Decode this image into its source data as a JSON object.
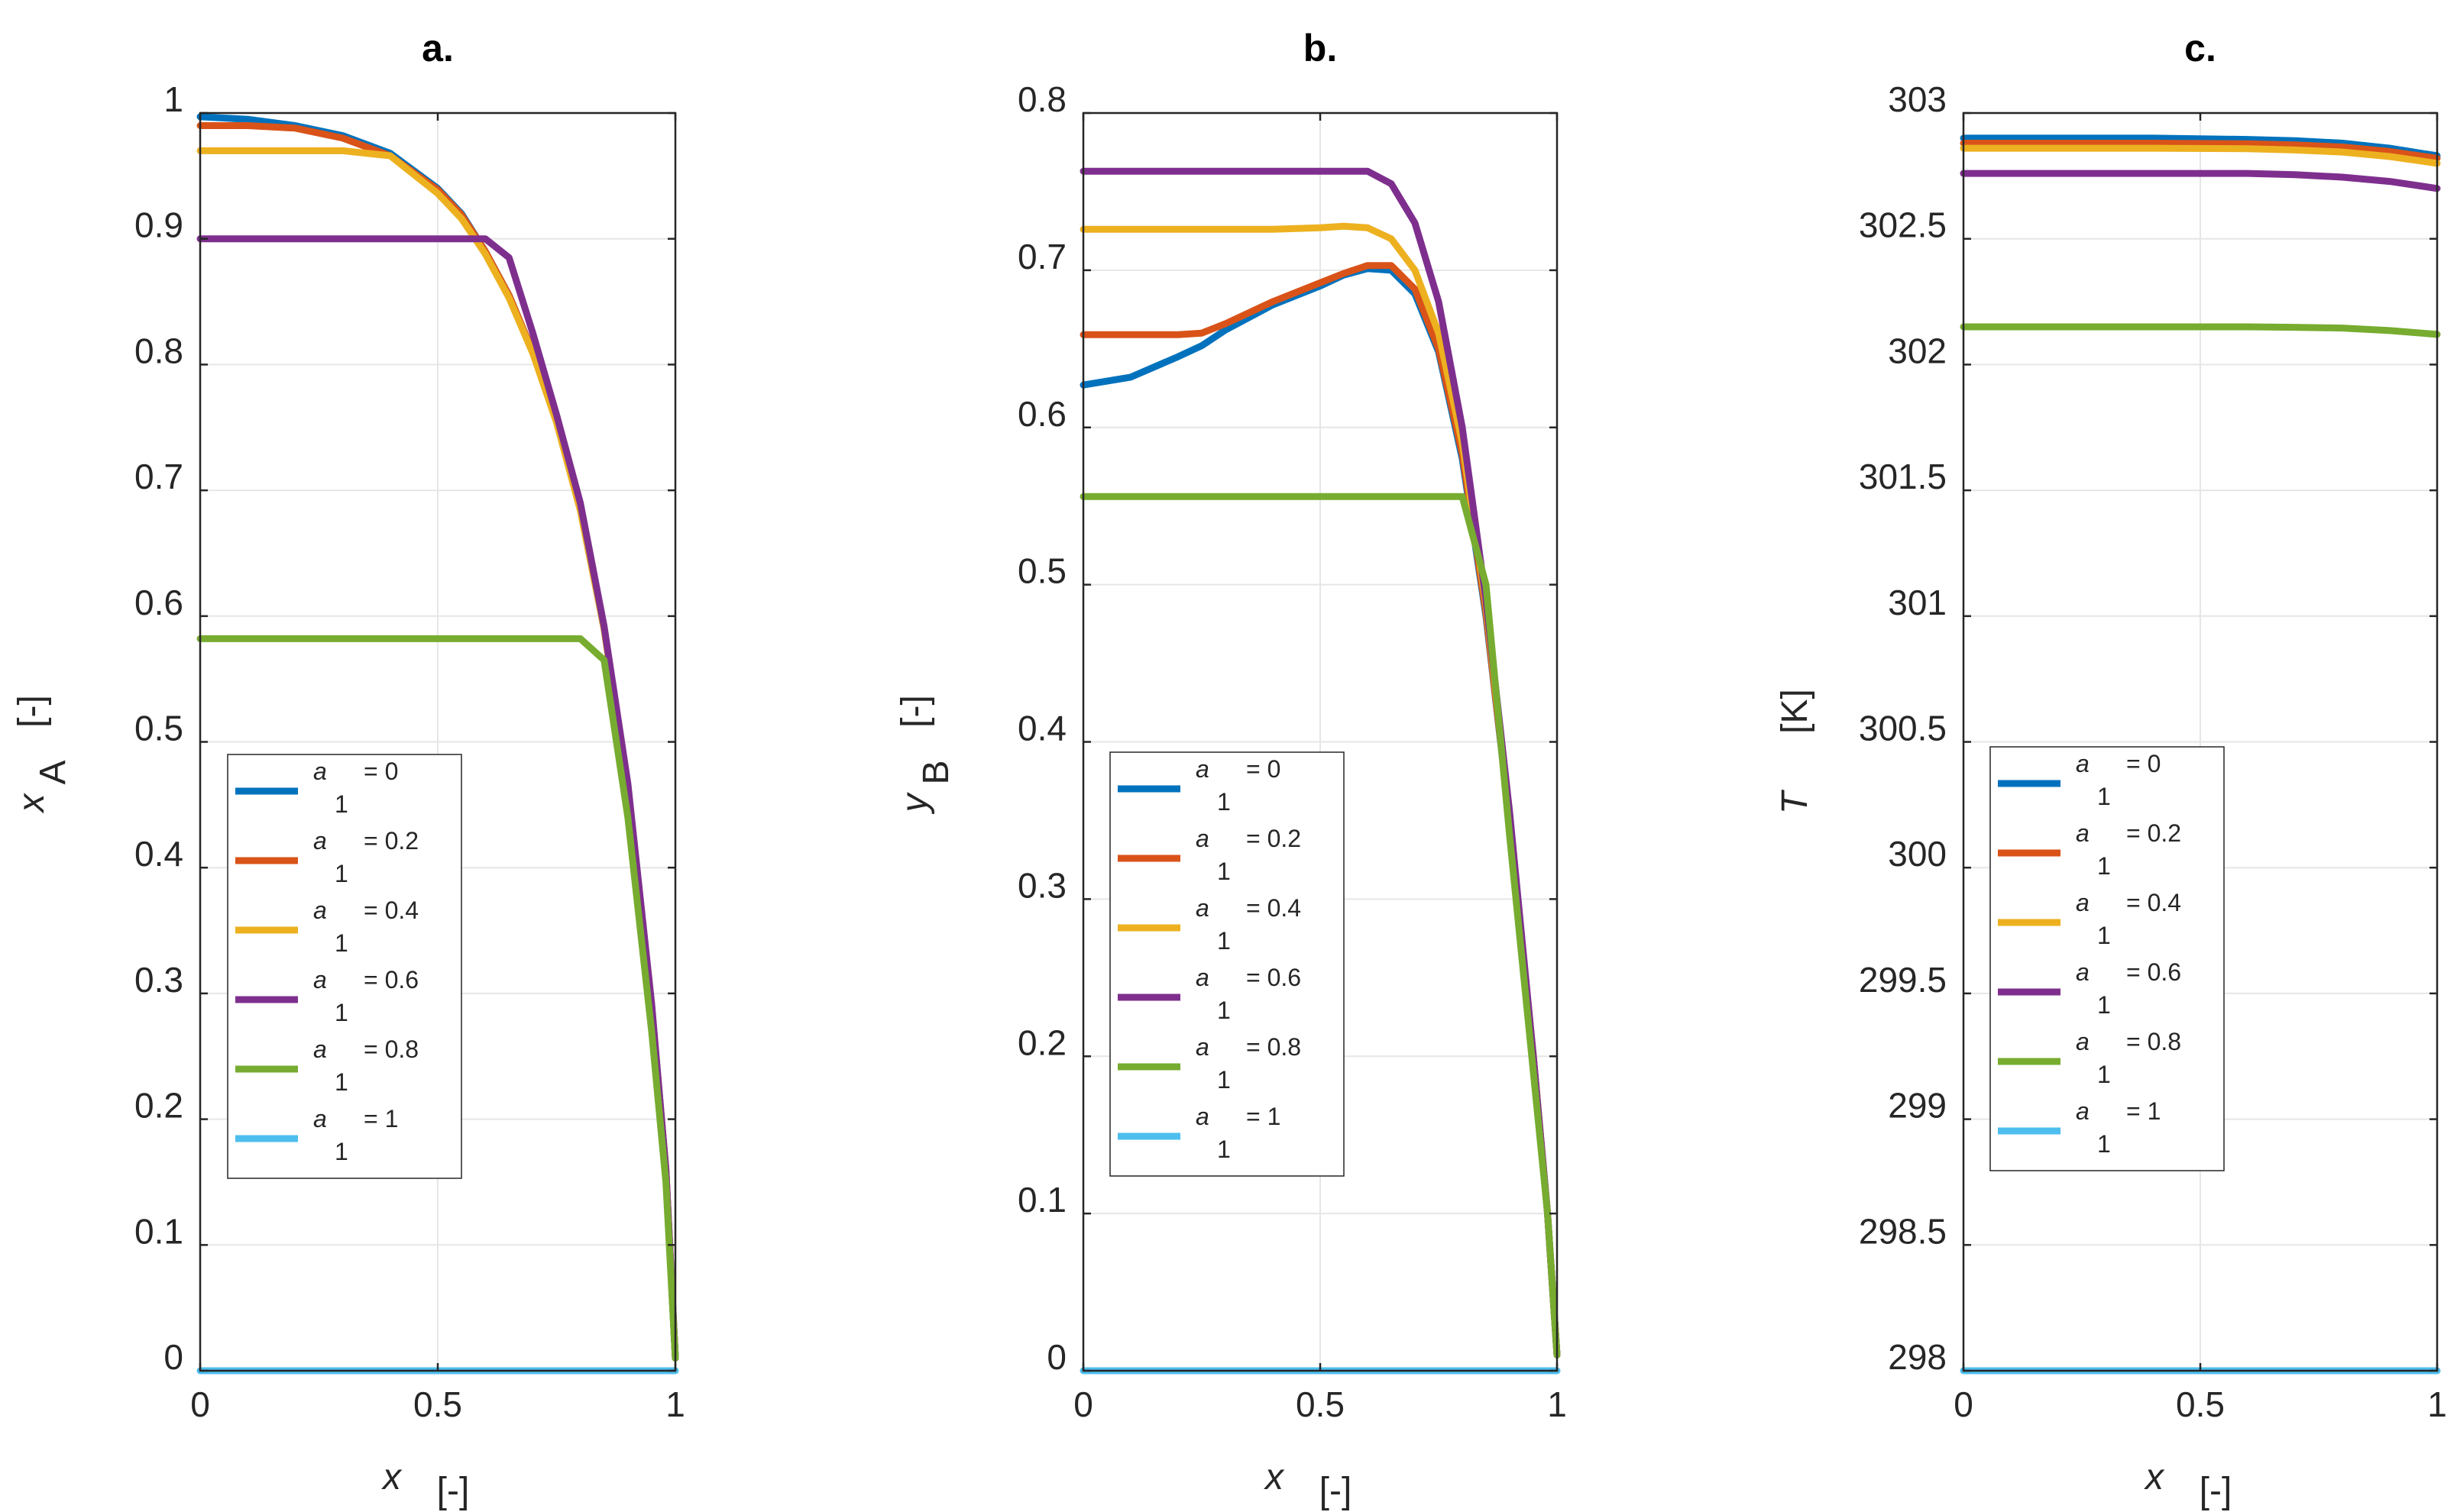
{
  "figure": {
    "panels": [
      "a.",
      "b.",
      "c."
    ]
  },
  "legend_entries": [
    {
      "symbol": "a",
      "subscript": "1",
      "label": "= 0",
      "color": "#0072BD"
    },
    {
      "symbol": "a",
      "subscript": "1",
      "label": "= 0.2",
      "color": "#D95319"
    },
    {
      "symbol": "a",
      "subscript": "1",
      "label": "= 0.4",
      "color": "#EDB120"
    },
    {
      "symbol": "a",
      "subscript": "1",
      "label": "= 0.6",
      "color": "#7E2F8E"
    },
    {
      "symbol": "a",
      "subscript": "1",
      "label": "= 0.8",
      "color": "#77AC30"
    },
    {
      "symbol": "a",
      "subscript": "1",
      "label": "= 1",
      "color": "#4DBEEE"
    }
  ],
  "chart_data": [
    {
      "type": "line",
      "title": "a.",
      "xlabel": "x",
      "xlabel_unit": "[-]",
      "ylabel": "x",
      "ylabel_sub": "A",
      "ylabel_unit": "[-]",
      "xlim": [
        0,
        1
      ],
      "ylim": [
        0,
        1
      ],
      "xticks": [
        0,
        0.5,
        1
      ],
      "xtick_labels": [
        "0",
        "0.5",
        "1"
      ],
      "yticks": [
        0,
        0.1,
        0.2,
        0.3,
        0.4,
        0.5,
        0.6,
        0.7,
        0.8,
        0.9,
        1
      ],
      "ytick_labels": [
        "0",
        "0.1",
        "0.2",
        "0.3",
        "0.4",
        "0.5",
        "0.6",
        "0.7",
        "0.8",
        "0.9",
        "1"
      ],
      "grid": true,
      "legend_position": "lower-left",
      "x": [
        0,
        0.1,
        0.2,
        0.3,
        0.4,
        0.5,
        0.55,
        0.6,
        0.65,
        0.7,
        0.75,
        0.8,
        0.85,
        0.9,
        0.95,
        0.98,
        1.0
      ],
      "series": [
        {
          "name": "a1 = 0",
          "values": [
            0.997,
            0.995,
            0.99,
            0.982,
            0.968,
            0.94,
            0.92,
            0.89,
            0.855,
            0.81,
            0.755,
            0.685,
            0.59,
            0.465,
            0.29,
            0.16,
            0.01
          ]
        },
        {
          "name": "a1 = 0.2",
          "values": [
            0.99,
            0.99,
            0.988,
            0.98,
            0.966,
            0.939,
            0.919,
            0.89,
            0.855,
            0.81,
            0.755,
            0.685,
            0.59,
            0.465,
            0.29,
            0.16,
            0.01
          ]
        },
        {
          "name": "a1 = 0.4",
          "values": [
            0.97,
            0.97,
            0.97,
            0.97,
            0.966,
            0.936,
            0.916,
            0.888,
            0.853,
            0.809,
            0.754,
            0.684,
            0.59,
            0.465,
            0.29,
            0.16,
            0.01
          ]
        },
        {
          "name": "a1 = 0.6",
          "values": [
            0.9,
            0.9,
            0.9,
            0.9,
            0.9,
            0.9,
            0.9,
            0.9,
            0.885,
            0.825,
            0.76,
            0.69,
            0.592,
            0.467,
            0.292,
            0.16,
            0.01
          ]
        },
        {
          "name": "a1 = 0.8",
          "values": [
            0.582,
            0.582,
            0.582,
            0.582,
            0.582,
            0.582,
            0.582,
            0.582,
            0.582,
            0.582,
            0.582,
            0.582,
            0.565,
            0.44,
            0.27,
            0.15,
            0.01
          ]
        },
        {
          "name": "a1 = 1",
          "values": [
            0,
            0,
            0,
            0,
            0,
            0,
            0,
            0,
            0,
            0,
            0,
            0,
            0,
            0,
            0,
            0,
            0
          ]
        }
      ]
    },
    {
      "type": "line",
      "title": "b.",
      "xlabel": "x",
      "xlabel_unit": "[-]",
      "ylabel": "y",
      "ylabel_sub": "B",
      "ylabel_unit": "[-]",
      "xlim": [
        0,
        1
      ],
      "ylim": [
        0,
        0.8
      ],
      "xticks": [
        0,
        0.5,
        1
      ],
      "xtick_labels": [
        "0",
        "0.5",
        "1"
      ],
      "yticks": [
        0,
        0.1,
        0.2,
        0.3,
        0.4,
        0.5,
        0.6,
        0.7,
        0.8
      ],
      "ytick_labels": [
        "0",
        "0.1",
        "0.2",
        "0.3",
        "0.4",
        "0.5",
        "0.6",
        "0.7",
        "0.8"
      ],
      "grid": true,
      "legend_position": "lower-left",
      "x": [
        0,
        0.1,
        0.2,
        0.25,
        0.3,
        0.4,
        0.5,
        0.55,
        0.6,
        0.65,
        0.7,
        0.75,
        0.8,
        0.85,
        0.9,
        0.95,
        0.98,
        1.0
      ],
      "series": [
        {
          "name": "a1 = 0",
          "values": [
            0.627,
            0.632,
            0.645,
            0.652,
            0.662,
            0.678,
            0.69,
            0.697,
            0.701,
            0.7,
            0.685,
            0.648,
            0.58,
            0.48,
            0.35,
            0.2,
            0.1,
            0.01
          ]
        },
        {
          "name": "a1 = 0.2",
          "values": [
            0.659,
            0.659,
            0.659,
            0.66,
            0.666,
            0.68,
            0.692,
            0.698,
            0.703,
            0.703,
            0.688,
            0.65,
            0.583,
            0.482,
            0.35,
            0.2,
            0.1,
            0.01
          ]
        },
        {
          "name": "a1 = 0.4",
          "values": [
            0.726,
            0.726,
            0.726,
            0.726,
            0.726,
            0.726,
            0.727,
            0.728,
            0.727,
            0.72,
            0.7,
            0.66,
            0.59,
            0.487,
            0.352,
            0.2,
            0.1,
            0.01
          ]
        },
        {
          "name": "a1 = 0.6",
          "values": [
            0.763,
            0.763,
            0.763,
            0.763,
            0.763,
            0.763,
            0.763,
            0.763,
            0.763,
            0.755,
            0.73,
            0.68,
            0.6,
            0.49,
            0.355,
            0.2,
            0.1,
            0.01
          ]
        },
        {
          "name": "a1 = 0.8",
          "values": [
            0.556,
            0.556,
            0.556,
            0.556,
            0.556,
            0.556,
            0.556,
            0.556,
            0.556,
            0.556,
            0.556,
            0.556,
            0.556,
            0.5,
            0.34,
            0.19,
            0.1,
            0.01
          ]
        },
        {
          "name": "a1 = 1",
          "values": [
            0,
            0,
            0,
            0,
            0,
            0,
            0,
            0,
            0,
            0,
            0,
            0,
            0,
            0,
            0,
            0,
            0,
            0
          ]
        }
      ]
    },
    {
      "type": "line",
      "title": "c.",
      "xlabel": "x",
      "xlabel_unit": "[-]",
      "ylabel": "T",
      "ylabel_sub": "",
      "ylabel_unit": "[K]",
      "xlim": [
        0,
        1
      ],
      "ylim": [
        298,
        303
      ],
      "xticks": [
        0,
        0.5,
        1
      ],
      "xtick_labels": [
        "0",
        "0.5",
        "1"
      ],
      "yticks": [
        298,
        298.5,
        299,
        299.5,
        300,
        300.5,
        301,
        301.5,
        302,
        302.5,
        303
      ],
      "ytick_labels": [
        "298",
        "298.5",
        "299",
        "299.5",
        "300",
        "300.5",
        "301",
        "301.5",
        "302",
        "302.5",
        "303"
      ],
      "grid": true,
      "legend_position": "lower-left",
      "x": [
        0,
        0.2,
        0.4,
        0.6,
        0.7,
        0.8,
        0.9,
        1.0
      ],
      "series": [
        {
          "name": "a1 = 0",
          "values": [
            302.9,
            302.9,
            302.9,
            302.895,
            302.89,
            302.88,
            302.86,
            302.83
          ]
        },
        {
          "name": "a1 = 0.2",
          "values": [
            302.88,
            302.88,
            302.88,
            302.878,
            302.873,
            302.865,
            302.847,
            302.82
          ]
        },
        {
          "name": "a1 = 0.4",
          "values": [
            302.86,
            302.86,
            302.86,
            302.858,
            302.853,
            302.845,
            302.827,
            302.8
          ]
        },
        {
          "name": "a1 = 0.6",
          "values": [
            302.76,
            302.76,
            302.76,
            302.76,
            302.755,
            302.745,
            302.728,
            302.7
          ]
        },
        {
          "name": "a1 = 0.8",
          "values": [
            302.15,
            302.15,
            302.15,
            302.15,
            302.148,
            302.145,
            302.135,
            302.12
          ]
        },
        {
          "name": "a1 = 1",
          "values": [
            298,
            298,
            298,
            298,
            298,
            298,
            298,
            298
          ]
        }
      ]
    }
  ]
}
